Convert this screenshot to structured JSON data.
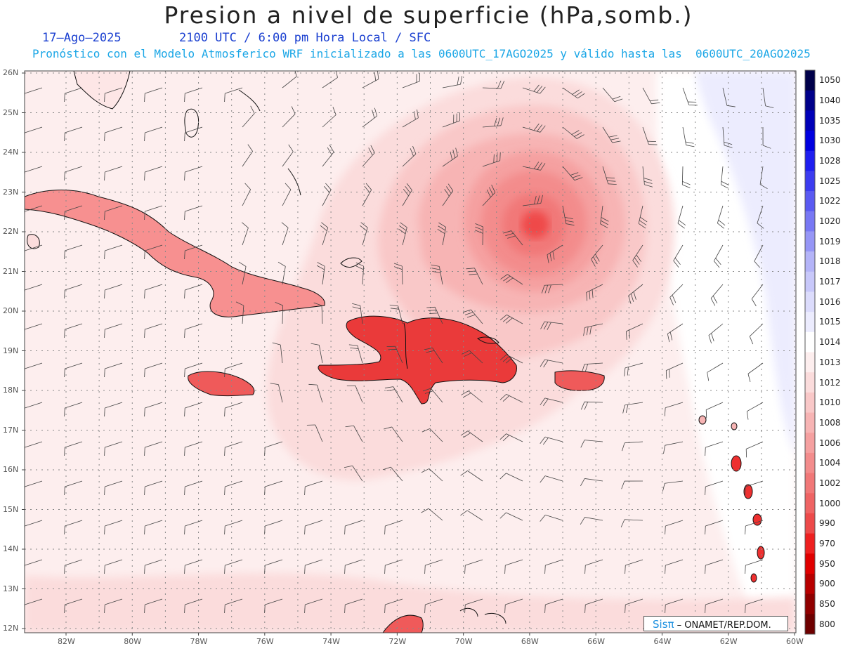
{
  "title": "Presion a nivel de superficie (hPa,somb.)",
  "date_line": "17–Ago–2025",
  "time_line": "2100 UTC / 6:00 pm Hora Local / SFC",
  "forecast_line": "Pronóstico con el Modelo Atmosferico WRF inicializado a las 0600UTC_17AGO2025 y válido hasta las  0600UTC_20AGO2025",
  "credit": {
    "brand": "Sisπ",
    "text": " – ONAMET/REP.DOM."
  },
  "axes": {
    "lat_labels": [
      "26N",
      "25N",
      "24N",
      "23N",
      "22N",
      "21N",
      "20N",
      "19N",
      "18N",
      "17N",
      "16N",
      "15N",
      "14N",
      "13N",
      "12N"
    ],
    "lon_labels": [
      "82W",
      "80W",
      "78W",
      "76W",
      "74W",
      "72W",
      "70W",
      "68W",
      "66W",
      "64W",
      "62W",
      "60W"
    ]
  },
  "colorbar": {
    "levels": [
      "1050",
      "1040",
      "1035",
      "1030",
      "1028",
      "1025",
      "1022",
      "1020",
      "1019",
      "1018",
      "1017",
      "1016",
      "1015",
      "1014",
      "1013",
      "1012",
      "1010",
      "1008",
      "1006",
      "1004",
      "1002",
      "1000",
      "990",
      "970",
      "950",
      "900",
      "850",
      "800"
    ],
    "colors": [
      "#00004a",
      "#00008a",
      "#0000b8",
      "#0000e0",
      "#1e1ef0",
      "#3c3cf0",
      "#5a5af2",
      "#7878f4",
      "#9696f6",
      "#b4b4f8",
      "#c8c8fa",
      "#dcdcfc",
      "#ececfe",
      "#ffffff",
      "#fdeeee",
      "#fbdcdc",
      "#f9c8c8",
      "#f7b4b4",
      "#f5a0a0",
      "#f38c8c",
      "#f17878",
      "#ef6464",
      "#ed4a4a",
      "#ee2020",
      "#e00000",
      "#b80000",
      "#900000",
      "#6e0000"
    ]
  },
  "map_features": {
    "low_center": "Hurricane low centered near 22N 68W",
    "min_pressure_shading": "1000"
  }
}
